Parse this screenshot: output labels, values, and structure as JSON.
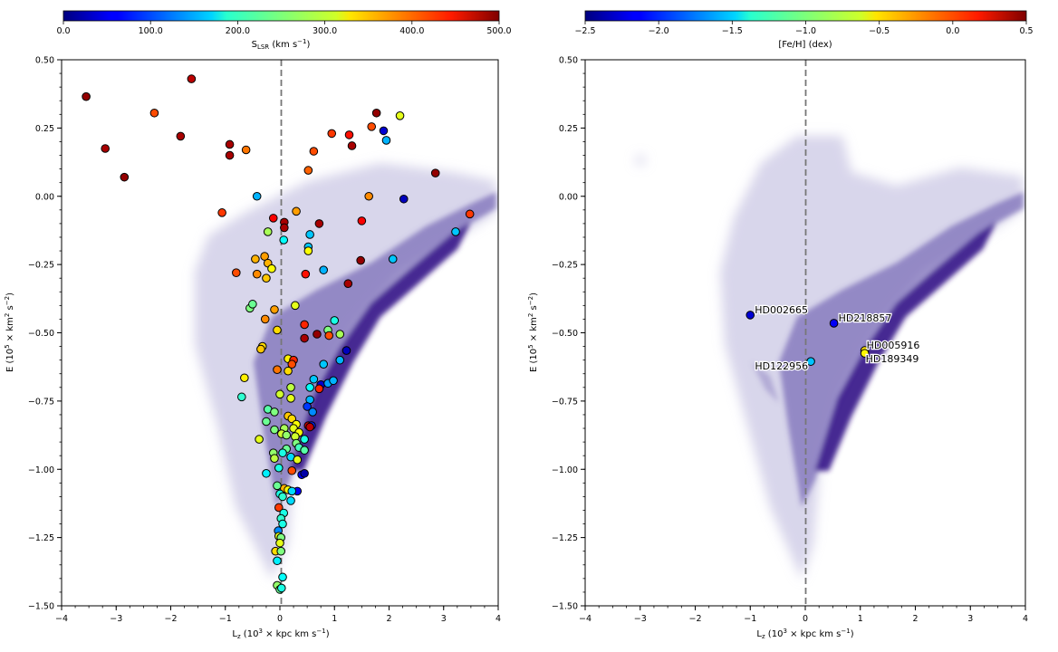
{
  "chart_data": [
    {
      "type": "scatter",
      "panel": "left",
      "xlabel": "Lz (10^3 × kpc km s^-1)",
      "xlabel_main": "L",
      "xlabel_sub": "z",
      "xlabel_tail": " (10",
      "xlabel_exp": "3",
      "xlabel_tail2": " × kpc km s",
      "xlabel_exp2": "−1",
      "xlabel_end": ")",
      "ylabel": "E (10^5 × km^2 s^-2)",
      "xlim": [
        -4,
        4
      ],
      "ylim": [
        -1.5,
        0.5
      ],
      "xticks": [
        -4,
        -3,
        -2,
        -1,
        0,
        1,
        2,
        3,
        4
      ],
      "xtick_labels": [
        "−4",
        "−3",
        "−2",
        "−1",
        "0",
        "1",
        "2",
        "3",
        "4"
      ],
      "yticks": [
        -1.5,
        -1.25,
        -1.0,
        -0.75,
        -0.5,
        -0.25,
        0.0,
        0.25,
        0.5
      ],
      "ytick_labels": [
        "−1.50",
        "−1.25",
        "−1.00",
        "−0.75",
        "−0.50",
        "−0.25",
        "0.00",
        "0.25",
        "0.50"
      ],
      "vline_x": 0,
      "colorbar": {
        "label_main": "S",
        "label_sub": "LSR",
        "label_tail": " (km s",
        "label_exp": "−1",
        "label_end": ")",
        "range": [
          0,
          500
        ],
        "ticks": [
          0,
          100,
          200,
          300,
          400,
          500
        ],
        "tick_labels": [
          "0.0",
          "100.0",
          "200.0",
          "300.0",
          "400.0",
          "500.0"
        ],
        "colormap": "jet"
      },
      "background": "density (purple)",
      "points": [
        {
          "x": -3.55,
          "y": 0.365,
          "c": 490
        },
        {
          "x": -3.2,
          "y": 0.175,
          "c": 480
        },
        {
          "x": -2.85,
          "y": 0.07,
          "c": 490
        },
        {
          "x": -2.3,
          "y": 0.305,
          "c": 400
        },
        {
          "x": -1.82,
          "y": 0.22,
          "c": 480
        },
        {
          "x": -1.62,
          "y": 0.43,
          "c": 470
        },
        {
          "x": -0.92,
          "y": 0.19,
          "c": 480
        },
        {
          "x": -0.92,
          "y": 0.15,
          "c": 480
        },
        {
          "x": -0.62,
          "y": 0.17,
          "c": 380
        },
        {
          "x": -1.06,
          "y": -0.06,
          "c": 410
        },
        {
          "x": -0.42,
          "y": 0.0,
          "c": 150
        },
        {
          "x": -0.12,
          "y": -0.08,
          "c": 440
        },
        {
          "x": 0.08,
          "y": -0.095,
          "c": 480
        },
        {
          "x": 0.08,
          "y": -0.115,
          "c": 480
        },
        {
          "x": 0.3,
          "y": -0.055,
          "c": 360
        },
        {
          "x": 0.52,
          "y": 0.095,
          "c": 390
        },
        {
          "x": 0.62,
          "y": 0.165,
          "c": 400
        },
        {
          "x": 0.72,
          "y": -0.1,
          "c": 480
        },
        {
          "x": 0.95,
          "y": 0.23,
          "c": 410
        },
        {
          "x": 1.27,
          "y": 0.225,
          "c": 430
        },
        {
          "x": 1.32,
          "y": 0.185,
          "c": 480
        },
        {
          "x": 1.5,
          "y": -0.09,
          "c": 440
        },
        {
          "x": 1.63,
          "y": 0.0,
          "c": 370
        },
        {
          "x": 1.68,
          "y": 0.255,
          "c": 400
        },
        {
          "x": 1.77,
          "y": 0.305,
          "c": 490
        },
        {
          "x": 1.9,
          "y": 0.24,
          "c": 40
        },
        {
          "x": 1.95,
          "y": 0.205,
          "c": 150
        },
        {
          "x": 2.2,
          "y": 0.295,
          "c": 300
        },
        {
          "x": 2.27,
          "y": -0.01,
          "c": 30
        },
        {
          "x": 2.85,
          "y": 0.085,
          "c": 490
        },
        {
          "x": 3.48,
          "y": -0.065,
          "c": 410
        },
        {
          "x": 3.22,
          "y": -0.13,
          "c": 160
        },
        {
          "x": 2.07,
          "y": -0.23,
          "c": 160
        },
        {
          "x": -0.22,
          "y": -0.13,
          "c": 270
        },
        {
          "x": -0.45,
          "y": -0.23,
          "c": 350
        },
        {
          "x": -0.8,
          "y": -0.28,
          "c": 400
        },
        {
          "x": -0.42,
          "y": -0.285,
          "c": 370
        },
        {
          "x": -0.28,
          "y": -0.22,
          "c": 360
        },
        {
          "x": -0.22,
          "y": -0.245,
          "c": 350
        },
        {
          "x": -0.15,
          "y": -0.265,
          "c": 310
        },
        {
          "x": -0.25,
          "y": -0.3,
          "c": 340
        },
        {
          "x": 0.07,
          "y": -0.16,
          "c": 190
        },
        {
          "x": 0.52,
          "y": -0.185,
          "c": 160
        },
        {
          "x": 0.55,
          "y": -0.14,
          "c": 160
        },
        {
          "x": 0.52,
          "y": -0.2,
          "c": 310
        },
        {
          "x": 0.47,
          "y": -0.285,
          "c": 430
        },
        {
          "x": 0.8,
          "y": -0.27,
          "c": 150
        },
        {
          "x": 1.48,
          "y": -0.235,
          "c": 490
        },
        {
          "x": 1.25,
          "y": -0.32,
          "c": 480
        },
        {
          "x": 0.28,
          "y": -0.4,
          "c": 300
        },
        {
          "x": -0.55,
          "y": -0.41,
          "c": 250
        },
        {
          "x": -0.5,
          "y": -0.395,
          "c": 240
        },
        {
          "x": -0.1,
          "y": -0.415,
          "c": 360
        },
        {
          "x": -0.27,
          "y": -0.45,
          "c": 370
        },
        {
          "x": -0.05,
          "y": -0.49,
          "c": 330
        },
        {
          "x": 0.45,
          "y": -0.47,
          "c": 420
        },
        {
          "x": 0.68,
          "y": -0.505,
          "c": 490
        },
        {
          "x": 0.45,
          "y": -0.52,
          "c": 480
        },
        {
          "x": 0.88,
          "y": -0.49,
          "c": 250
        },
        {
          "x": 1.0,
          "y": -0.455,
          "c": 200
        },
        {
          "x": 0.9,
          "y": -0.51,
          "c": 400
        },
        {
          "x": 1.1,
          "y": -0.505,
          "c": 270
        },
        {
          "x": 1.22,
          "y": -0.565,
          "c": 30
        },
        {
          "x": 1.1,
          "y": -0.6,
          "c": 150
        },
        {
          "x": -0.32,
          "y": -0.55,
          "c": 330
        },
        {
          "x": -0.35,
          "y": -0.56,
          "c": 340
        },
        {
          "x": -0.65,
          "y": -0.665,
          "c": 320
        },
        {
          "x": -0.7,
          "y": -0.735,
          "c": 210
        },
        {
          "x": 0.15,
          "y": -0.595,
          "c": 320
        },
        {
          "x": 0.25,
          "y": -0.6,
          "c": 420
        },
        {
          "x": 0.22,
          "y": -0.615,
          "c": 400
        },
        {
          "x": 0.15,
          "y": -0.64,
          "c": 330
        },
        {
          "x": -0.05,
          "y": -0.635,
          "c": 380
        },
        {
          "x": 0.8,
          "y": -0.615,
          "c": 160
        },
        {
          "x": 0.62,
          "y": -0.67,
          "c": 160
        },
        {
          "x": 0.75,
          "y": -0.69,
          "c": 40
        },
        {
          "x": 0.72,
          "y": -0.705,
          "c": 420
        },
        {
          "x": 0.88,
          "y": -0.685,
          "c": 140
        },
        {
          "x": 0.98,
          "y": -0.675,
          "c": 150
        },
        {
          "x": 0.55,
          "y": -0.7,
          "c": 190
        },
        {
          "x": 0.55,
          "y": -0.745,
          "c": 150
        },
        {
          "x": 0.5,
          "y": -0.77,
          "c": 90
        },
        {
          "x": 0.6,
          "y": -0.79,
          "c": 130
        },
        {
          "x": 0.2,
          "y": -0.7,
          "c": 280
        },
        {
          "x": 0.2,
          "y": -0.74,
          "c": 300
        },
        {
          "x": 0.0,
          "y": -0.725,
          "c": 290
        },
        {
          "x": -0.22,
          "y": -0.78,
          "c": 230
        },
        {
          "x": -0.1,
          "y": -0.79,
          "c": 250
        },
        {
          "x": -0.25,
          "y": -0.825,
          "c": 240
        },
        {
          "x": 0.15,
          "y": -0.805,
          "c": 340
        },
        {
          "x": 0.22,
          "y": -0.815,
          "c": 330
        },
        {
          "x": 0.3,
          "y": -0.835,
          "c": 310
        },
        {
          "x": 0.08,
          "y": -0.85,
          "c": 270
        },
        {
          "x": -0.1,
          "y": -0.855,
          "c": 250
        },
        {
          "x": 0.25,
          "y": -0.85,
          "c": 300
        },
        {
          "x": 0.35,
          "y": -0.865,
          "c": 310
        },
        {
          "x": 0.52,
          "y": -0.84,
          "c": 460
        },
        {
          "x": 0.58,
          "y": -0.84,
          "c": 80
        },
        {
          "x": 0.55,
          "y": -0.845,
          "c": 470
        },
        {
          "x": 0.03,
          "y": -0.87,
          "c": 290
        },
        {
          "x": 0.12,
          "y": -0.875,
          "c": 260
        },
        {
          "x": 0.28,
          "y": -0.88,
          "c": 290
        },
        {
          "x": -0.38,
          "y": -0.89,
          "c": 300
        },
        {
          "x": 0.45,
          "y": -0.89,
          "c": 200
        },
        {
          "x": -0.12,
          "y": -0.94,
          "c": 260
        },
        {
          "x": -0.1,
          "y": -0.96,
          "c": 280
        },
        {
          "x": 0.3,
          "y": -0.905,
          "c": 250
        },
        {
          "x": 0.35,
          "y": -0.92,
          "c": 220
        },
        {
          "x": 0.45,
          "y": -0.93,
          "c": 230
        },
        {
          "x": 0.12,
          "y": -0.925,
          "c": 240
        },
        {
          "x": 0.05,
          "y": -0.94,
          "c": 200
        },
        {
          "x": 0.2,
          "y": -0.955,
          "c": 170
        },
        {
          "x": 0.32,
          "y": -0.965,
          "c": 300
        },
        {
          "x": -0.02,
          "y": -0.995,
          "c": 200
        },
        {
          "x": 0.22,
          "y": -1.005,
          "c": 400
        },
        {
          "x": -0.25,
          "y": -1.015,
          "c": 180
        },
        {
          "x": 0.4,
          "y": -1.02,
          "c": 60
        },
        {
          "x": 0.45,
          "y": -1.015,
          "c": 20
        },
        {
          "x": 0.08,
          "y": -1.07,
          "c": 350
        },
        {
          "x": 0.15,
          "y": -1.075,
          "c": 310
        },
        {
          "x": 0.32,
          "y": -1.08,
          "c": 60
        },
        {
          "x": 0.22,
          "y": -1.08,
          "c": 170
        },
        {
          "x": -0.05,
          "y": -1.06,
          "c": 240
        },
        {
          "x": 0.0,
          "y": -1.09,
          "c": 200
        },
        {
          "x": 0.05,
          "y": -1.1,
          "c": 210
        },
        {
          "x": 0.2,
          "y": -1.115,
          "c": 170
        },
        {
          "x": -0.02,
          "y": -1.14,
          "c": 410
        },
        {
          "x": 0.07,
          "y": -1.16,
          "c": 200
        },
        {
          "x": 0.02,
          "y": -1.18,
          "c": 210
        },
        {
          "x": 0.05,
          "y": -1.2,
          "c": 200
        },
        {
          "x": -0.03,
          "y": -1.225,
          "c": 130
        },
        {
          "x": -0.02,
          "y": -1.245,
          "c": 300
        },
        {
          "x": 0.02,
          "y": -1.25,
          "c": 250
        },
        {
          "x": 0.0,
          "y": -1.27,
          "c": 300
        },
        {
          "x": -0.08,
          "y": -1.3,
          "c": 330
        },
        {
          "x": 0.02,
          "y": -1.3,
          "c": 250
        },
        {
          "x": -0.05,
          "y": -1.335,
          "c": 180
        },
        {
          "x": 0.05,
          "y": -1.395,
          "c": 190
        },
        {
          "x": -0.05,
          "y": -1.425,
          "c": 260
        },
        {
          "x": 0.0,
          "y": -1.44,
          "c": 240
        },
        {
          "x": 0.03,
          "y": -1.435,
          "c": 200
        }
      ]
    },
    {
      "type": "scatter",
      "panel": "right",
      "xlabel": "Lz (10^3 × kpc km s^-1)",
      "ylabel": "E (10^5 × km^2 s^-2)",
      "xlim": [
        -4,
        4
      ],
      "ylim": [
        -1.5,
        0.5
      ],
      "vline_x": 0,
      "colorbar": {
        "label": "[Fe/H] (dex)",
        "range": [
          -2.5,
          0.5
        ],
        "ticks": [
          -2.5,
          -2.0,
          -1.5,
          -1.0,
          -0.5,
          0.0,
          0.5
        ],
        "tick_labels": [
          "−2.5",
          "−2.0",
          "−1.5",
          "−1.0",
          "−0.5",
          "0.0",
          "0.5"
        ],
        "colormap": "jet"
      },
      "background": "density (purple)",
      "points": [
        {
          "name": "HD002665",
          "x": -1.0,
          "y": -0.435,
          "c": -2.25,
          "label_pos": "right"
        },
        {
          "name": "HD218857",
          "x": 0.52,
          "y": -0.465,
          "c": -2.15,
          "label_pos": "right"
        },
        {
          "name": "HD122956",
          "x": 0.1,
          "y": -0.605,
          "c": -1.55,
          "label_pos": "left-below"
        },
        {
          "name": "HD005916",
          "x": 1.08,
          "y": -0.565,
          "c": -0.55,
          "label_pos": "right-above"
        },
        {
          "name": "HD189349",
          "x": 1.08,
          "y": -0.575,
          "c": -0.6,
          "label_pos": "right-below"
        }
      ]
    }
  ]
}
